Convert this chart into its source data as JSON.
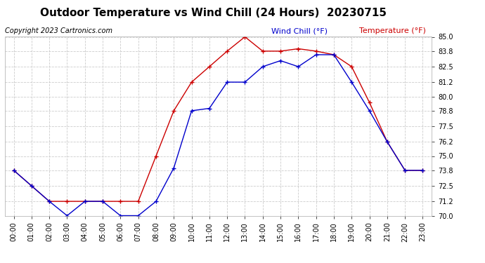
{
  "title": "Outdoor Temperature vs Wind Chill (24 Hours)  20230715",
  "copyright_text": "Copyright 2023 Cartronics.com",
  "legend_wind_chill": "Wind Chill (°F)",
  "legend_temperature": "Temperature (°F)",
  "hours": [
    "00:00",
    "01:00",
    "02:00",
    "03:00",
    "04:00",
    "05:00",
    "06:00",
    "07:00",
    "08:00",
    "09:00",
    "10:00",
    "11:00",
    "12:00",
    "13:00",
    "14:00",
    "15:00",
    "16:00",
    "17:00",
    "18:00",
    "19:00",
    "20:00",
    "21:00",
    "22:00",
    "23:00"
  ],
  "temperature": [
    73.8,
    72.5,
    71.2,
    71.2,
    71.2,
    71.2,
    71.2,
    71.2,
    75.0,
    78.8,
    81.2,
    82.5,
    83.8,
    85.0,
    83.8,
    83.8,
    84.0,
    83.8,
    83.5,
    82.5,
    79.5,
    76.2,
    73.8,
    73.8
  ],
  "wind_chill": [
    73.8,
    72.5,
    71.2,
    70.0,
    71.2,
    71.2,
    70.0,
    70.0,
    71.2,
    74.0,
    78.8,
    79.0,
    81.2,
    81.2,
    82.5,
    83.0,
    82.5,
    83.5,
    83.5,
    81.2,
    78.8,
    76.2,
    73.8,
    73.8
  ],
  "temp_color": "#cc0000",
  "wind_chill_color": "#0000cc",
  "marker": "+",
  "linewidth": 1.0,
  "markersize": 5,
  "ylim_min": 70.0,
  "ylim_max": 85.0,
  "yticks": [
    70.0,
    71.2,
    72.5,
    73.8,
    75.0,
    76.2,
    77.5,
    78.8,
    80.0,
    81.2,
    82.5,
    83.8,
    85.0
  ],
  "background_color": "#ffffff",
  "grid_color": "#cccccc",
  "title_fontsize": 11,
  "axis_fontsize": 7,
  "copyright_fontsize": 7,
  "legend_fontsize": 8
}
